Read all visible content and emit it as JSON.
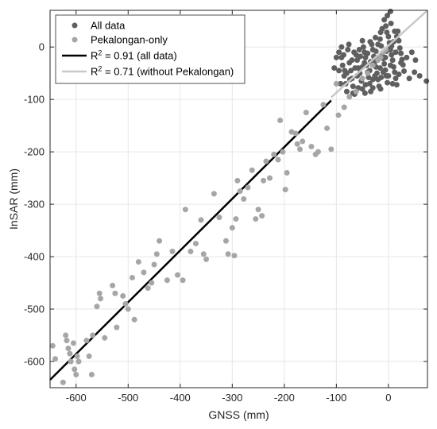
{
  "chart_data": {
    "type": "scatter",
    "title": "",
    "xlabel": "GNSS (mm)",
    "ylabel": "InSAR (mm)",
    "xlim": [
      -650,
      75
    ],
    "ylim": [
      -650,
      70
    ],
    "xticks": [
      -600,
      -500,
      -400,
      -300,
      -200,
      -100,
      0
    ],
    "yticks": [
      0,
      -100,
      -200,
      -300,
      -400,
      -500,
      -600
    ],
    "grid": true,
    "legend_position": "top-left",
    "colors": {
      "all_data": "#5f5f5f",
      "pekalongan": "#a6a6a6",
      "fit_all": "#000000",
      "fit_without": "#c8c8c8"
    },
    "series": [
      {
        "name": "All data",
        "kind": "points",
        "cluster_note": "dense cloud of points near origin",
        "points": [
          [
            -95,
            -10
          ],
          [
            -90,
            -20
          ],
          [
            -88,
            -35
          ],
          [
            -85,
            -55
          ],
          [
            -82,
            -70
          ],
          [
            -80,
            -85
          ],
          [
            -78,
            -5
          ],
          [
            -75,
            -30
          ],
          [
            -72,
            -45
          ],
          [
            -70,
            -60
          ],
          [
            -68,
            -75
          ],
          [
            -65,
            -90
          ],
          [
            -62,
            -15
          ],
          [
            -60,
            -25
          ],
          [
            -58,
            -40
          ],
          [
            -55,
            -50
          ],
          [
            -52,
            -65
          ],
          [
            -50,
            -80
          ],
          [
            -48,
            0
          ],
          [
            -46,
            -10
          ],
          [
            -44,
            -20
          ],
          [
            -42,
            -35
          ],
          [
            -40,
            -48
          ],
          [
            -38,
            -58
          ],
          [
            -36,
            -70
          ],
          [
            -34,
            -85
          ],
          [
            -32,
            5
          ],
          [
            -30,
            -5
          ],
          [
            -28,
            -18
          ],
          [
            -26,
            -28
          ],
          [
            -24,
            -38
          ],
          [
            -22,
            -50
          ],
          [
            -20,
            -62
          ],
          [
            -18,
            -75
          ],
          [
            -16,
            15
          ],
          [
            -14,
            2
          ],
          [
            -12,
            -12
          ],
          [
            -10,
            -22
          ],
          [
            -8,
            -32
          ],
          [
            -6,
            -44
          ],
          [
            -4,
            -55
          ],
          [
            -2,
            -68
          ],
          [
            0,
            20
          ],
          [
            2,
            8
          ],
          [
            4,
            -5
          ],
          [
            6,
            -15
          ],
          [
            8,
            -25
          ],
          [
            10,
            -38
          ],
          [
            12,
            -48
          ],
          [
            14,
            -60
          ],
          [
            16,
            -72
          ],
          [
            18,
            30
          ],
          [
            20,
            12
          ],
          [
            22,
            -2
          ],
          [
            24,
            -12
          ],
          [
            26,
            -24
          ],
          [
            28,
            -34
          ],
          [
            30,
            -46
          ],
          [
            -90,
            0
          ],
          [
            -86,
            -15
          ],
          [
            -76,
            5
          ],
          [
            -66,
            -10
          ],
          [
            -56,
            -5
          ],
          [
            -46,
            -30
          ],
          [
            -36,
            -45
          ],
          [
            -26,
            -55
          ],
          [
            -16,
            -40
          ],
          [
            -6,
            -20
          ],
          [
            4,
            -35
          ],
          [
            14,
            -10
          ],
          [
            24,
            -30
          ],
          [
            -84,
            -45
          ],
          [
            -74,
            -62
          ],
          [
            -64,
            -40
          ],
          [
            -54,
            -18
          ],
          [
            -44,
            -72
          ],
          [
            -34,
            -28
          ],
          [
            -24,
            -8
          ],
          [
            -14,
            -58
          ],
          [
            -4,
            -8
          ],
          [
            6,
            2
          ],
          [
            16,
            20
          ],
          [
            -70,
            -25
          ],
          [
            -60,
            -55
          ],
          [
            -50,
            -38
          ],
          [
            -40,
            -12
          ],
          [
            -30,
            -62
          ],
          [
            -20,
            -22
          ],
          [
            -10,
            -48
          ],
          [
            0,
            -2
          ],
          [
            10,
            10
          ],
          [
            -5,
            40
          ],
          [
            -15,
            28
          ],
          [
            5,
            45
          ],
          [
            -25,
            18
          ],
          [
            -35,
            10
          ],
          [
            -95,
            -45
          ],
          [
            -92,
            -70
          ],
          [
            -80,
            -50
          ],
          [
            -68,
            -88
          ],
          [
            -58,
            -78
          ],
          [
            -45,
            -88
          ],
          [
            -30,
            -78
          ],
          [
            -15,
            -80
          ],
          [
            0,
            -55
          ],
          [
            8,
            -70
          ],
          [
            20,
            -52
          ],
          [
            -2,
            60
          ],
          [
            4,
            68
          ],
          [
            -8,
            52
          ],
          [
            -100,
            -20
          ],
          [
            -104,
            -40
          ],
          [
            40,
            -60
          ],
          [
            35,
            -20
          ],
          [
            45,
            -10
          ],
          [
            -3,
            28
          ],
          [
            -12,
            35
          ],
          [
            12,
            30
          ],
          [
            -20,
            5
          ],
          [
            -50,
            12
          ],
          [
            50,
            -48
          ],
          [
            60,
            -55
          ],
          [
            73,
            -65
          ],
          [
            52,
            -25
          ]
        ]
      },
      {
        "name": "Pekalongan-only",
        "kind": "points",
        "points": [
          [
            -645,
            -570
          ],
          [
            -640,
            -595
          ],
          [
            -625,
            -640
          ],
          [
            -620,
            -550
          ],
          [
            -618,
            -560
          ],
          [
            -615,
            -575
          ],
          [
            -612,
            -585
          ],
          [
            -610,
            -600
          ],
          [
            -605,
            -565
          ],
          [
            -603,
            -615
          ],
          [
            -600,
            -625
          ],
          [
            -598,
            -590
          ],
          [
            -595,
            -600
          ],
          [
            -580,
            -560
          ],
          [
            -575,
            -590
          ],
          [
            -570,
            -625
          ],
          [
            -568,
            -550
          ],
          [
            -560,
            -495
          ],
          [
            -555,
            -470
          ],
          [
            -553,
            -480
          ],
          [
            -545,
            -555
          ],
          [
            -530,
            -455
          ],
          [
            -525,
            -470
          ],
          [
            -522,
            -535
          ],
          [
            -510,
            -475
          ],
          [
            -505,
            -490
          ],
          [
            -500,
            -500
          ],
          [
            -492,
            -440
          ],
          [
            -488,
            -520
          ],
          [
            -480,
            -410
          ],
          [
            -470,
            -430
          ],
          [
            -462,
            -460
          ],
          [
            -455,
            -450
          ],
          [
            -450,
            -415
          ],
          [
            -445,
            -395
          ],
          [
            -440,
            -370
          ],
          [
            -425,
            -445
          ],
          [
            -415,
            -390
          ],
          [
            -405,
            -435
          ],
          [
            -395,
            -445
          ],
          [
            -390,
            -310
          ],
          [
            -380,
            -390
          ],
          [
            -370,
            -375
          ],
          [
            -360,
            -330
          ],
          [
            -355,
            -395
          ],
          [
            -350,
            -405
          ],
          [
            -335,
            -280
          ],
          [
            -325,
            -325
          ],
          [
            -312,
            -370
          ],
          [
            -308,
            -395
          ],
          [
            -300,
            -345
          ],
          [
            -296,
            -398
          ],
          [
            -293,
            -328
          ],
          [
            -290,
            -255
          ],
          [
            -285,
            -275
          ],
          [
            -278,
            -290
          ],
          [
            -270,
            -268
          ],
          [
            -262,
            -235
          ],
          [
            -255,
            -328
          ],
          [
            -250,
            -310
          ],
          [
            -243,
            -322
          ],
          [
            -240,
            -255
          ],
          [
            -235,
            -218
          ],
          [
            -228,
            -250
          ],
          [
            -220,
            -205
          ],
          [
            -212,
            -215
          ],
          [
            -208,
            -140
          ],
          [
            -203,
            -200
          ],
          [
            -198,
            -272
          ],
          [
            -195,
            -240
          ],
          [
            -186,
            -162
          ],
          [
            -178,
            -165
          ],
          [
            -175,
            -185
          ],
          [
            -170,
            -195
          ],
          [
            -165,
            -180
          ],
          [
            -158,
            -125
          ],
          [
            -148,
            -190
          ],
          [
            -140,
            -205
          ],
          [
            -135,
            -200
          ],
          [
            -125,
            -110
          ],
          [
            -118,
            -155
          ],
          [
            -110,
            -195
          ],
          [
            -100,
            -70
          ],
          [
            -96,
            -130
          ],
          [
            -85,
            -115
          ],
          [
            -75,
            -95
          ],
          [
            -62,
            -85
          ],
          [
            -50,
            -60
          ],
          [
            -40,
            -50
          ],
          [
            -30,
            -35
          ],
          [
            -20,
            -25
          ],
          [
            -15,
            -20
          ],
          [
            -10,
            -10
          ],
          [
            -5,
            -5
          ]
        ]
      },
      {
        "name": "R² = 0.91 (all data)",
        "label_base": "R",
        "label_sup": "2",
        "label_rest": " = 0.91 (all data)",
        "kind": "line",
        "x": [
          -650,
          -110
        ],
        "y": [
          -635,
          -102
        ]
      },
      {
        "name": "R² = 0.71 (without Pekalongan)",
        "label_base": "R",
        "label_sup": "2",
        "label_rest": " = 0.71 (without Pekalongan)",
        "kind": "line",
        "x": [
          -110,
          75
        ],
        "y": [
          -96,
          70
        ]
      }
    ]
  }
}
